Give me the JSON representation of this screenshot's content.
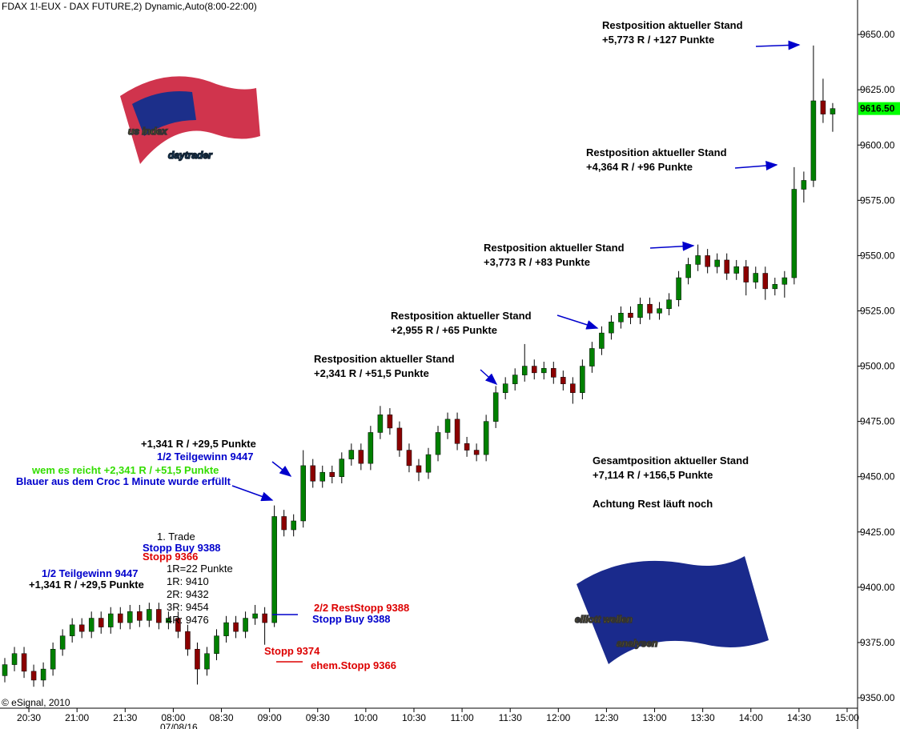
{
  "chart_data": {
    "type": "candlestick",
    "title": "FDAX 1!-EUX - DAX FUTURE,2) Dynamic,Auto(8:00-22:00)",
    "up_color": "#008000",
    "down_color": "#8b0000",
    "wick_color": "#000000",
    "open": [
      9360,
      9365,
      9370,
      9362,
      9358,
      9363,
      9372,
      9378,
      9383,
      9380,
      9386,
      9382,
      9388,
      9384,
      9389,
      9385,
      9390,
      9384,
      9386,
      9380,
      9372,
      9363,
      9370,
      9378,
      9384,
      9380,
      9386,
      9388,
      9384,
      9432,
      9426,
      9430,
      9455,
      9448,
      9452,
      9450,
      9458,
      9462,
      9456,
      9470,
      9478,
      9472,
      9462,
      9455,
      9452,
      9460,
      9470,
      9476,
      9465,
      9462,
      9460,
      9475,
      9488,
      9492,
      9496,
      9500,
      9497,
      9499,
      9495,
      9492,
      9488,
      9500,
      9508,
      9515,
      9520,
      9524,
      9522,
      9528,
      9524,
      9526,
      9530,
      9540,
      9546,
      9550,
      9545,
      9548,
      9542,
      9545,
      9538,
      9542,
      9535,
      9537,
      9540,
      9580,
      9584,
      9620,
      9614
    ],
    "high": [
      9368,
      9373,
      9373,
      9365,
      9366,
      9375,
      9381,
      9386,
      9386,
      9389,
      9389,
      9391,
      9391,
      9392,
      9392,
      9393,
      9393,
      9389,
      9389,
      9383,
      9375,
      9373,
      9381,
      9387,
      9387,
      9389,
      9392,
      9391,
      9437,
      9435,
      9433,
      9462,
      9458,
      9455,
      9455,
      9461,
      9465,
      9465,
      9473,
      9482,
      9481,
      9475,
      9465,
      9458,
      9463,
      9473,
      9479,
      9479,
      9468,
      9465,
      9478,
      9491,
      9495,
      9499,
      9510,
      9503,
      9502,
      9502,
      9498,
      9495,
      9503,
      9511,
      9518,
      9523,
      9527,
      9527,
      9531,
      9531,
      9529,
      9533,
      9543,
      9549,
      9555,
      9553,
      9551,
      9551,
      9548,
      9548,
      9545,
      9545,
      9540,
      9543,
      9590,
      9588,
      9645,
      9630,
      9619
    ],
    "low": [
      9357,
      9362,
      9359,
      9355,
      9355,
      9360,
      9369,
      9375,
      9377,
      9377,
      9379,
      9379,
      9381,
      9381,
      9382,
      9382,
      9381,
      9381,
      9377,
      9369,
      9356,
      9360,
      9367,
      9375,
      9377,
      9377,
      9383,
      9374,
      9382,
      9423,
      9423,
      9427,
      9445,
      9445,
      9447,
      9447,
      9455,
      9453,
      9453,
      9467,
      9469,
      9459,
      9452,
      9448,
      9449,
      9457,
      9467,
      9462,
      9459,
      9457,
      9457,
      9472,
      9485,
      9489,
      9493,
      9494,
      9494,
      9492,
      9489,
      9483,
      9485,
      9497,
      9505,
      9512,
      9517,
      9519,
      9519,
      9521,
      9521,
      9523,
      9527,
      9537,
      9543,
      9542,
      9542,
      9539,
      9539,
      9532,
      9535,
      9530,
      9532,
      9531,
      9537,
      9574,
      9581,
      9610,
      9606
    ],
    "close": [
      9365,
      9370,
      9362,
      9358,
      9363,
      9372,
      9378,
      9383,
      9380,
      9386,
      9382,
      9388,
      9384,
      9389,
      9385,
      9390,
      9384,
      9386,
      9380,
      9372,
      9363,
      9370,
      9378,
      9384,
      9380,
      9386,
      9388,
      9384,
      9432,
      9426,
      9430,
      9455,
      9448,
      9452,
      9450,
      9458,
      9462,
      9456,
      9470,
      9478,
      9472,
      9462,
      9455,
      9452,
      9460,
      9470,
      9476,
      9465,
      9462,
      9460,
      9475,
      9488,
      9492,
      9496,
      9500,
      9497,
      9499,
      9495,
      9492,
      9488,
      9500,
      9508,
      9515,
      9520,
      9524,
      9522,
      9528,
      9524,
      9526,
      9530,
      9540,
      9546,
      9550,
      9545,
      9548,
      9542,
      9545,
      9538,
      9542,
      9535,
      9537,
      9540,
      9580,
      9584,
      9620,
      9614,
      9616.5
    ],
    "xlim": [
      -0.5,
      88.5
    ],
    "xticks": [
      {
        "value": 2.5,
        "label": "20:30"
      },
      {
        "value": 7.5,
        "label": "21:00"
      },
      {
        "value": 12.5,
        "label": "21:30"
      },
      {
        "value": 17.5,
        "label": "08:00"
      },
      {
        "value": 22.5,
        "label": "08:30"
      },
      {
        "value": 27.5,
        "label": "09:00"
      },
      {
        "value": 32.5,
        "label": "09:30"
      },
      {
        "value": 37.5,
        "label": "10:00"
      },
      {
        "value": 42.5,
        "label": "10:30"
      },
      {
        "value": 47.5,
        "label": "11:00"
      },
      {
        "value": 52.5,
        "label": "11:30"
      },
      {
        "value": 57.5,
        "label": "12:00"
      },
      {
        "value": 62.5,
        "label": "12:30"
      },
      {
        "value": 67.5,
        "label": "13:00"
      },
      {
        "value": 72.5,
        "label": "13:30"
      },
      {
        "value": 77.5,
        "label": "14:00"
      },
      {
        "value": 82.5,
        "label": "14:30"
      },
      {
        "value": 87.5,
        "label": "15:00"
      }
    ],
    "date_label": "07/08/16",
    "ylim": [
      9345.3,
      9665.6
    ],
    "yticks": [
      {
        "value": 9350,
        "label": "9350.00"
      },
      {
        "value": 9375,
        "label": "9375.00"
      },
      {
        "value": 9400,
        "label": "9400.00"
      },
      {
        "value": 9425,
        "label": "9425.00"
      },
      {
        "value": 9450,
        "label": "9450.00"
      },
      {
        "value": 9475,
        "label": "9475.00"
      },
      {
        "value": 9500,
        "label": "9500.00"
      },
      {
        "value": 9525,
        "label": "9525.00"
      },
      {
        "value": 9550,
        "label": "9550.00"
      },
      {
        "value": 9575,
        "label": "9575.00"
      },
      {
        "value": 9600,
        "label": "9600.00"
      },
      {
        "value": 9625,
        "label": "9625.00"
      },
      {
        "value": 9650,
        "label": "9650.00"
      }
    ],
    "last_price": {
      "value": 9616.5,
      "label": "9616.50"
    },
    "copyright": "© eSignal, 2010",
    "logos": [
      [
        "us index",
        "daytrader"
      ],
      [
        "elliott wellen",
        "analysen"
      ]
    ],
    "annotations": [
      "Restposition aktueller Stand",
      "+5,773 R / +127 Punkte",
      "Restposition aktueller Stand",
      "+4,364 R / +96 Punkte",
      "Restposition aktueller Stand",
      "+3,773 R / +83 Punkte",
      "Restposition aktueller Stand",
      "+2,955 R / +65 Punkte",
      "Restposition aktueller Stand",
      "+2,341 R / +51,5 Punkte",
      "+1,341 R / +29,5 Punkte",
      "1/2 Teilgewinn 9447",
      "wem es reicht  +2,341 R / +51,5 Punkte",
      "Blauer aus dem Croc 1 Minute wurde erfüllt",
      "1. Trade",
      "Stopp Buy 9388",
      "Stopp 9366",
      "1R=22 Punkte",
      "1R: 9410",
      "2R: 9432",
      "3R: 9454",
      "4R: 9476",
      "1/2 Teilgewinn 9447",
      "+1,341 R / +29,5 Punkte",
      "2/2 RestStopp 9388",
      "Stopp Buy 9388",
      "Stopp 9374",
      "ehem.Stopp 9366",
      "Gesamtposition aktueller Stand",
      "+7,114 R / +156,5 Punkte",
      "Achtung Rest läuft noch"
    ]
  }
}
